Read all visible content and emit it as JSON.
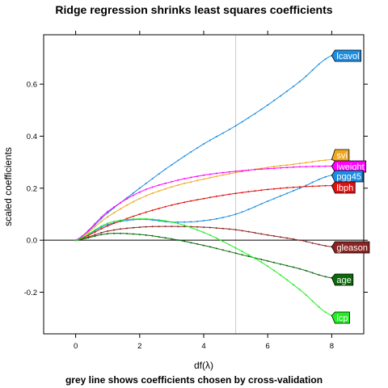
{
  "chart_data": {
    "type": "line",
    "title": "Ridge regression shrinks least squares coefficients",
    "subtitle": "grey line shows coefficients chosen by cross-validation",
    "xlabel": "df(λ)",
    "ylabel": "scaled coefficients",
    "xlim": [
      -1,
      9
    ],
    "ylim": [
      -0.36,
      0.79
    ],
    "xticks": [
      0,
      2,
      4,
      6,
      8
    ],
    "yticks": [
      -0.2,
      0.0,
      0.2,
      0.4,
      0.6
    ],
    "xtick_labels": [
      "0",
      "2",
      "4",
      "6",
      "8"
    ],
    "ytick_labels": [
      "-0.2",
      "0.0",
      "0.2",
      "0.4",
      "0.6"
    ],
    "reference_lines": {
      "vertical_x": 5,
      "vertical_color": "#c8c8c8",
      "horizontal_y": 0
    },
    "series": [
      {
        "name": "lcavol",
        "color": "#1d8de0",
        "label_bg": "#1d8de0",
        "label_fg": "#ffffff",
        "x": [
          0,
          1,
          2,
          3,
          4,
          5,
          6,
          7,
          8
        ],
        "values": [
          0,
          0.105,
          0.2,
          0.29,
          0.37,
          0.44,
          0.52,
          0.61,
          0.71
        ]
      },
      {
        "name": "svi",
        "color": "#f0a820",
        "label_bg": "#f0a820",
        "label_fg": "#ffffff",
        "x": [
          0,
          1,
          2,
          3,
          4,
          5,
          6,
          7,
          8
        ],
        "values": [
          0,
          0.09,
          0.16,
          0.205,
          0.235,
          0.26,
          0.28,
          0.295,
          0.31
        ]
      },
      {
        "name": "lweight",
        "color": "#ff00ff",
        "label_bg": "#ff00ff",
        "label_fg": "#ffffff",
        "x": [
          0,
          1,
          2,
          3,
          4,
          5,
          6,
          7,
          8
        ],
        "values": [
          0,
          0.11,
          0.185,
          0.225,
          0.25,
          0.265,
          0.275,
          0.282,
          0.285
        ]
      },
      {
        "name": "pgg45",
        "color": "#1d8de0",
        "label_bg": "#1d8de0",
        "label_fg": "#ffffff",
        "x": [
          0,
          1,
          2,
          3,
          4,
          5,
          6,
          7,
          8
        ],
        "values": [
          0,
          0.06,
          0.08,
          0.07,
          0.075,
          0.1,
          0.15,
          0.2,
          0.25
        ]
      },
      {
        "name": "lbph",
        "color": "#e01010",
        "label_bg": "#e01010",
        "label_fg": "#ffffff",
        "x": [
          0,
          1,
          2,
          3,
          4,
          5,
          6,
          7,
          8
        ],
        "values": [
          0,
          0.055,
          0.1,
          0.135,
          0.16,
          0.18,
          0.195,
          0.205,
          0.21
        ]
      },
      {
        "name": "gleason",
        "color": "#8b2323",
        "label_bg": "#8b2323",
        "label_fg": "#ffffff",
        "x": [
          0,
          1,
          2,
          3,
          4,
          5,
          6,
          7,
          8
        ],
        "values": [
          0,
          0.035,
          0.05,
          0.053,
          0.05,
          0.04,
          0.02,
          0.0,
          -0.025
        ]
      },
      {
        "name": "age",
        "color": "#0a6a0a",
        "label_bg": "#0a6a0a",
        "label_fg": "#ffffff",
        "x": [
          0,
          1,
          2,
          3,
          4,
          5,
          6,
          7,
          8
        ],
        "values": [
          0,
          0.025,
          0.022,
          0.005,
          -0.02,
          -0.05,
          -0.08,
          -0.11,
          -0.145
        ]
      },
      {
        "name": "lcp",
        "color": "#22ee22",
        "label_bg": "#22ee22",
        "label_fg": "#ffffff",
        "x": [
          0,
          1,
          2,
          3,
          4,
          5,
          6,
          7,
          8
        ],
        "values": [
          0,
          0.065,
          0.082,
          0.07,
          0.03,
          -0.03,
          -0.1,
          -0.19,
          -0.29
        ]
      }
    ]
  }
}
